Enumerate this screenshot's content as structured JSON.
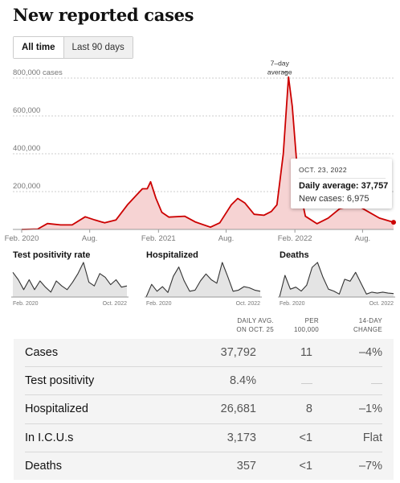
{
  "title": "New reported cases",
  "tabs": [
    {
      "label": "All time",
      "active": true
    },
    {
      "label": "Last 90 days",
      "active": false
    }
  ],
  "chart_data": [
    {
      "type": "area",
      "title": "New reported cases",
      "series": [
        {
          "name": "7–day average",
          "color": "#cc0000",
          "fill": "#f6d3d3"
        }
      ],
      "y_ticks": [
        "800,000 cases",
        "600,000",
        "400,000",
        "200,000"
      ],
      "ylim": [
        0,
        800000
      ],
      "x_ticks": [
        "Feb. 2020",
        "Aug.",
        "Feb. 2021",
        "Aug.",
        "Feb. 2022",
        "Aug."
      ],
      "annotation": "7–day average",
      "points": [
        [
          "2020-02-01",
          0
        ],
        [
          "2020-03-15",
          2000
        ],
        [
          "2020-04-10",
          31000
        ],
        [
          "2020-05-15",
          24000
        ],
        [
          "2020-06-15",
          24000
        ],
        [
          "2020-07-20",
          67000
        ],
        [
          "2020-08-15",
          50000
        ],
        [
          "2020-09-10",
          35000
        ],
        [
          "2020-10-10",
          50000
        ],
        [
          "2020-11-10",
          130000
        ],
        [
          "2020-12-01",
          175000
        ],
        [
          "2020-12-20",
          215000
        ],
        [
          "2021-01-02",
          215000
        ],
        [
          "2021-01-11",
          252000
        ],
        [
          "2021-01-25",
          165000
        ],
        [
          "2021-02-10",
          90000
        ],
        [
          "2021-03-01",
          65000
        ],
        [
          "2021-04-12",
          70000
        ],
        [
          "2021-05-10",
          40000
        ],
        [
          "2021-06-20",
          12000
        ],
        [
          "2021-07-15",
          35000
        ],
        [
          "2021-08-15",
          130000
        ],
        [
          "2021-09-01",
          164000
        ],
        [
          "2021-09-20",
          140000
        ],
        [
          "2021-10-15",
          80000
        ],
        [
          "2021-11-10",
          75000
        ],
        [
          "2021-11-30",
          95000
        ],
        [
          "2021-12-15",
          130000
        ],
        [
          "2022-01-01",
          400000
        ],
        [
          "2022-01-15",
          806000
        ],
        [
          "2022-01-25",
          650000
        ],
        [
          "2022-02-10",
          250000
        ],
        [
          "2022-03-01",
          70000
        ],
        [
          "2022-04-01",
          30000
        ],
        [
          "2022-05-01",
          60000
        ],
        [
          "2022-06-01",
          110000
        ],
        [
          "2022-07-15",
          130000
        ],
        [
          "2022-08-15",
          95000
        ],
        [
          "2022-09-15",
          60000
        ],
        [
          "2022-10-23",
          37757
        ]
      ],
      "tooltip": {
        "date": "OCT. 23, 2022",
        "avg_label": "Daily average: 37,757",
        "new_label": "New cases: 6,975"
      }
    },
    {
      "type": "area",
      "title": "Test positivity rate",
      "x_ticks": [
        "Feb. 2020",
        "Oct. 2022"
      ],
      "values": [
        20,
        14,
        6,
        14,
        6,
        13,
        8,
        4,
        13,
        9,
        6,
        12,
        19,
        28,
        12,
        9,
        19,
        16,
        10,
        14,
        8,
        9
      ]
    },
    {
      "type": "area",
      "title": "Hospitalized",
      "x_ticks": [
        "Feb. 2020",
        "Oct. 2022"
      ],
      "values": [
        0,
        55,
        25,
        45,
        20,
        90,
        130,
        70,
        25,
        30,
        70,
        100,
        75,
        60,
        150,
        90,
        25,
        30,
        45,
        40,
        30,
        25
      ]
    },
    {
      "type": "area",
      "title": "Deaths",
      "x_ticks": [
        "Feb. 2020",
        "Oct. 2022"
      ],
      "values": [
        0,
        2200,
        800,
        1000,
        600,
        1200,
        3000,
        3500,
        2000,
        800,
        600,
        300,
        1800,
        1600,
        2500,
        1400,
        300,
        500,
        400,
        500,
        400,
        350
      ]
    },
    {
      "type": "table",
      "columns": [
        "DAILY AVG. ON OCT. 25",
        "PER 100,000",
        "14-DAY CHANGE"
      ],
      "rows": [
        {
          "name": "Cases",
          "avg": "37,792",
          "per": "11",
          "change": "–4%"
        },
        {
          "name": "Test positivity",
          "avg": "8.4%",
          "per": "",
          "change": ""
        },
        {
          "name": "Hospitalized",
          "avg": "26,681",
          "per": "8",
          "change": "–1%"
        },
        {
          "name": "In I.C.U.s",
          "avg": "3,173",
          "per": "<1",
          "change": "Flat"
        },
        {
          "name": "Deaths",
          "avg": "357",
          "per": "<1",
          "change": "–7%"
        }
      ]
    }
  ],
  "columns_display": {
    "avg": [
      "DAILY AVG.",
      "ON OCT. 25"
    ],
    "per": [
      "PER",
      "100,000"
    ],
    "change": [
      "14-DAY",
      "CHANGE"
    ]
  }
}
